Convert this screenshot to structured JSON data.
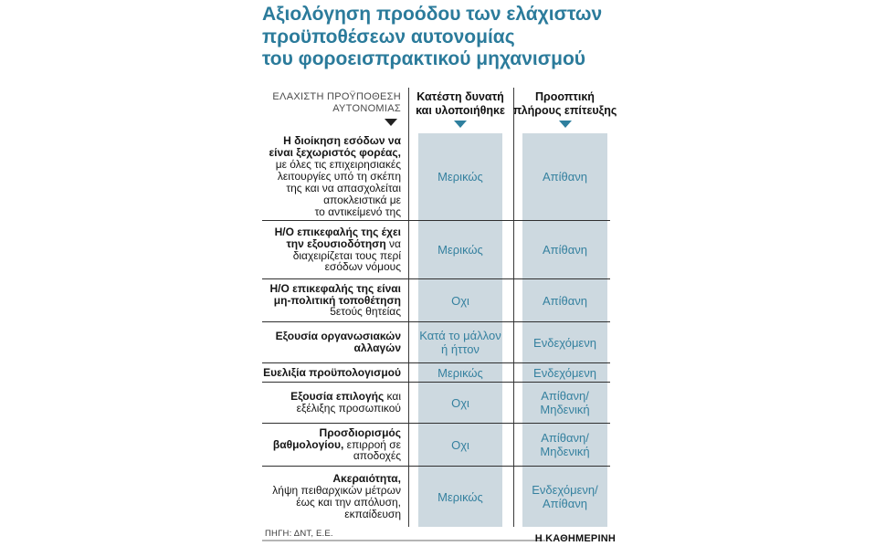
{
  "title": {
    "line1": "Αξιολόγηση προόδου των ελάχιστων",
    "line2": "προϋποθέσεων αυτονομίας",
    "line3": "του φοροεισπρακτικού μηχανισμού"
  },
  "table": {
    "row_header": {
      "line1": "ΕΛΑΧΙΣΤΗ ΠΡΟΫΠΟΘΕΣΗ",
      "line2": "ΑΥΤΟΝΟΜΙΑΣ"
    },
    "columns": [
      {
        "line1": "Κατέστη δυνατή",
        "line2": "και υλοποιήθηκε"
      },
      {
        "line1": "Προοπτική",
        "line2": "πλήρους επίτευξης"
      }
    ],
    "rows": [
      {
        "label_lines": [
          [
            {
              "t": "Η διοίκηση εσόδων να",
              "b": true
            }
          ],
          [
            {
              "t": "είναι ξεχωριστός φορέας,",
              "b": true
            }
          ],
          [
            {
              "t": "με όλες τις επιχειρησιακές",
              "b": false
            }
          ],
          [
            {
              "t": "λειτουργίες υπό τη σκέπη",
              "b": false
            }
          ],
          [
            {
              "t": "της και να απασχολείται",
              "b": false
            }
          ],
          [
            {
              "t": "αποκλειστικά με",
              "b": false
            }
          ],
          [
            {
              "t": "το αντικείμενό της",
              "b": false
            }
          ]
        ],
        "achieved": "Μερικώς",
        "prospect": "Απίθανη"
      },
      {
        "label_lines": [
          [
            {
              "t": "Η/Ο επικεφαλής της έχει",
              "b": true
            }
          ],
          [
            {
              "t": "την εξουσιοδότηση",
              "b": true
            },
            {
              "t": " να",
              "b": false
            }
          ],
          [
            {
              "t": "διαχειρίζεται τους περί",
              "b": false
            }
          ],
          [
            {
              "t": "εσόδων νόμους",
              "b": false
            }
          ]
        ],
        "achieved": "Μερικώς",
        "prospect": "Απίθανη"
      },
      {
        "label_lines": [
          [
            {
              "t": "Η/Ο επικεφαλής της είναι",
              "b": true
            }
          ],
          [
            {
              "t": "μη-πολιτική τοποθέτηση",
              "b": true
            }
          ],
          [
            {
              "t": "5ετούς θητείας",
              "b": false
            }
          ]
        ],
        "achieved": "Οχι",
        "prospect": "Απίθανη"
      },
      {
        "label_lines": [
          [
            {
              "t": "Εξουσία οργανωσιακών",
              "b": true
            }
          ],
          [
            {
              "t": "αλλαγών",
              "b": true
            }
          ]
        ],
        "achieved": "Κατά το μάλλον\nή ήττον",
        "prospect": "Ενδεχόμενη"
      },
      {
        "label_lines": [
          [
            {
              "t": "Ευελιξία προϋπολογισμού",
              "b": true
            }
          ]
        ],
        "achieved": "Μερικώς",
        "prospect": "Ενδεχόμενη"
      },
      {
        "label_lines": [
          [
            {
              "t": "Εξουσία επιλογής",
              "b": true
            },
            {
              "t": " και",
              "b": false
            }
          ],
          [
            {
              "t": "εξέλιξης προσωπικού",
              "b": false
            }
          ]
        ],
        "achieved": "Οχι",
        "prospect": "Απίθανη/\nΜηδενική"
      },
      {
        "label_lines": [
          [
            {
              "t": "Προσδιορισμός",
              "b": true
            }
          ],
          [
            {
              "t": "βαθμολογίου,",
              "b": true
            },
            {
              "t": " επιρροή σε",
              "b": false
            }
          ],
          [
            {
              "t": "αποδοχές",
              "b": false
            }
          ]
        ],
        "achieved": "Οχι",
        "prospect": "Απίθανη/\nΜηδενική"
      },
      {
        "label_lines": [
          [
            {
              "t": "Ακεραιότητα,",
              "b": true
            }
          ],
          [
            {
              "t": "λήψη πειθαρχικών μέτρων",
              "b": false
            }
          ],
          [
            {
              "t": "έως και την απόλυση,",
              "b": false
            }
          ],
          [
            {
              "t": "εκπαίδευση",
              "b": false
            }
          ]
        ],
        "achieved": "Μερικώς",
        "prospect": "Ενδεχόμενη/\nΑπίθανη"
      }
    ],
    "source": "ΠΗΓΗ: ΔΝΤ, Ε.Ε.",
    "brand": "Η ΚΑΘΗΜΕΡΙΝΗ"
  },
  "colors": {
    "title_teal": "#2b7b9b",
    "cell_teal": "#35819f",
    "stripe_bg": "#cdd9e0",
    "grid_line": "#2f2f2f",
    "triangle_teal": "#2e7f9e",
    "triangle_black": "#222222",
    "footer_rule": "#b5b5b5"
  },
  "chart_data": {
    "type": "table",
    "title": "Αξιολόγηση προόδου των ελάχιστων προϋποθέσεων αυτονομίας του φοροεισπρακτικού μηχανισμού",
    "columns": [
      "ΕΛΑΧΙΣΤΗ ΠΡΟΫΠΟΘΕΣΗ ΑΥΤΟΝΟΜΙΑΣ",
      "Κατέστη δυνατή και υλοποιήθηκε",
      "Προοπτική πλήρους επίτευξης"
    ],
    "rows": [
      [
        "Η διοίκηση εσόδων να είναι ξεχωριστός φορέας, με όλες τις επιχειρησιακές λειτουργίες υπό τη σκέπη της και να απασχολείται αποκλειστικά με το αντικείμενό της",
        "Μερικώς",
        "Απίθανη"
      ],
      [
        "Η/Ο επικεφαλής της έχει την εξουσιοδότηση να διαχειρίζεται τους περί εσόδων νόμους",
        "Μερικώς",
        "Απίθανη"
      ],
      [
        "Η/Ο επικεφαλής της είναι μη-πολιτική τοποθέτηση 5ετούς θητείας",
        "Οχι",
        "Απίθανη"
      ],
      [
        "Εξουσία οργανωσιακών αλλαγών",
        "Κατά το μάλλον ή ήττον",
        "Ενδεχόμενη"
      ],
      [
        "Ευελιξία προϋπολογισμού",
        "Μερικώς",
        "Ενδεχόμενη"
      ],
      [
        "Εξουσία επιλογής και εξέλιξης προσωπικού",
        "Οχι",
        "Απίθανη/Μηδενική"
      ],
      [
        "Προσδιορισμός βαθμολογίου, επιρροή σε αποδοχές",
        "Οχι",
        "Απίθανη/Μηδενική"
      ],
      [
        "Ακεραιότητα, λήψη πειθαρχικών μέτρων έως και την απόλυση, εκπαίδευση",
        "Μερικώς",
        "Ενδεχόμενη/Απίθανη"
      ]
    ],
    "source": "ΠΗΓΗ: ΔΝΤ, Ε.Ε.",
    "legend_position": "none",
    "grid": "horizontal-row-lines"
  }
}
